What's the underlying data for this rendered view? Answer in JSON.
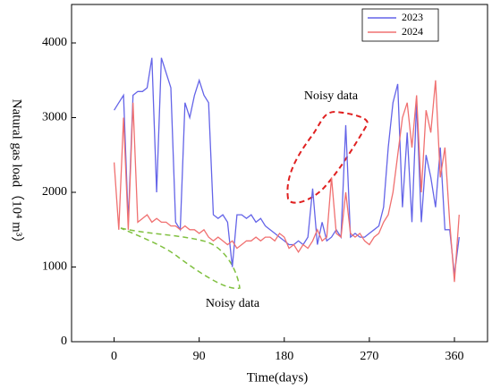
{
  "chart_data": {
    "type": "line",
    "xlabel": "Time(days)",
    "ylabel": "Natural gas load（10⁴ m³）",
    "annotations": [
      "Noisy data",
      "Noisy data"
    ],
    "x": [
      0,
      5,
      10,
      15,
      20,
      25,
      30,
      35,
      40,
      45,
      50,
      55,
      60,
      65,
      70,
      75,
      80,
      85,
      90,
      95,
      100,
      105,
      110,
      115,
      120,
      125,
      130,
      135,
      140,
      145,
      150,
      155,
      160,
      165,
      170,
      175,
      180,
      185,
      190,
      195,
      200,
      205,
      210,
      215,
      220,
      225,
      230,
      235,
      240,
      245,
      250,
      255,
      260,
      265,
      270,
      275,
      280,
      285,
      290,
      295,
      300,
      305,
      310,
      315,
      320,
      325,
      330,
      335,
      340,
      345,
      350,
      355,
      360,
      365
    ],
    "series": [
      {
        "name": "2023",
        "color": "#6464e8",
        "values": [
          3100,
          3200,
          3300,
          1600,
          3300,
          3350,
          3350,
          3400,
          3800,
          2000,
          3800,
          3600,
          3400,
          1600,
          1500,
          3200,
          3000,
          3300,
          3500,
          3300,
          3200,
          1700,
          1650,
          1700,
          1600,
          1000,
          1700,
          1700,
          1650,
          1700,
          1600,
          1650,
          1550,
          1500,
          1450,
          1400,
          1350,
          1300,
          1300,
          1350,
          1300,
          1400,
          2050,
          1300,
          1600,
          1350,
          1400,
          1500,
          1400,
          2900,
          1400,
          1450,
          1400,
          1400,
          1450,
          1500,
          1550,
          1800,
          2600,
          3200,
          3450,
          1800,
          2800,
          1600,
          3200,
          1600,
          2500,
          2200,
          1800,
          2600,
          1500,
          1500,
          900,
          1400
        ]
      },
      {
        "name": "2024",
        "color": "#f07070",
        "values": [
          2400,
          1500,
          3000,
          1500,
          3200,
          1600,
          1650,
          1700,
          1600,
          1650,
          1600,
          1600,
          1550,
          1550,
          1500,
          1550,
          1500,
          1500,
          1450,
          1500,
          1400,
          1350,
          1400,
          1350,
          1300,
          1350,
          1250,
          1300,
          1350,
          1350,
          1400,
          1350,
          1400,
          1400,
          1350,
          1450,
          1400,
          1250,
          1300,
          1200,
          1300,
          1250,
          1350,
          1500,
          1350,
          1400,
          2200,
          1450,
          1400,
          2000,
          1450,
          1400,
          1450,
          1350,
          1300,
          1400,
          1450,
          1600,
          1700,
          2000,
          2500,
          3000,
          3200,
          2600,
          3300,
          2000,
          3100,
          2800,
          3500,
          2200,
          2600,
          1600,
          800,
          1700
        ]
      }
    ],
    "xlim": [
      -45,
      395
    ],
    "xticks": [
      0,
      90,
      180,
      270,
      360
    ],
    "ylim": [
      0,
      4515
    ],
    "yticks": [
      0,
      1000,
      2000,
      3000,
      4000
    ],
    "legend": "upper right"
  }
}
